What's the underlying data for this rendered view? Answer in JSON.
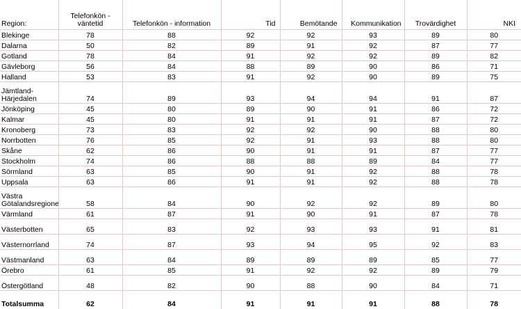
{
  "headers": {
    "region": "Region:",
    "wait": "Telefonkön - väntetid",
    "info": "Telefonkön - information",
    "tid": "Tid",
    "bemotande": "Bemötande",
    "kommunikation": "Kommunikation",
    "trovardighet": "Trovärdighet",
    "nki": "NKI"
  },
  "rows": [
    {
      "region": "Blekinge",
      "wait": "78",
      "info": "88",
      "tid": "92",
      "bem": "92",
      "kom": "93",
      "tro": "89",
      "nki": "80"
    },
    {
      "region": "Dalarna",
      "wait": "50",
      "info": "82",
      "tid": "89",
      "bem": "91",
      "kom": "92",
      "tro": "87",
      "nki": "77"
    },
    {
      "region": "Gotland",
      "wait": "78",
      "info": "84",
      "tid": "91",
      "bem": "92",
      "kom": "92",
      "tro": "89",
      "nki": "82"
    },
    {
      "region": "Gävleborg",
      "wait": "56",
      "info": "84",
      "tid": "88",
      "bem": "89",
      "kom": "90",
      "tro": "86",
      "nki": "71"
    },
    {
      "region": "Halland",
      "wait": "53",
      "info": "83",
      "tid": "91",
      "bem": "92",
      "kom": "90",
      "tro": "89",
      "nki": "75"
    },
    {
      "region": "Jämtland-Härjedalen",
      "wait": "74",
      "info": "89",
      "tid": "93",
      "bem": "94",
      "kom": "94",
      "tro": "91",
      "nki": "87"
    },
    {
      "region": "Jönköping",
      "wait": "45",
      "info": "80",
      "tid": "89",
      "bem": "90",
      "kom": "91",
      "tro": "86",
      "nki": "72"
    },
    {
      "region": "Kalmar",
      "wait": "45",
      "info": "80",
      "tid": "91",
      "bem": "91",
      "kom": "91",
      "tro": "87",
      "nki": "72"
    },
    {
      "region": "Kronoberg",
      "wait": "73",
      "info": "83",
      "tid": "92",
      "bem": "92",
      "kom": "90",
      "tro": "88",
      "nki": "80"
    },
    {
      "region": "Norrbotten",
      "wait": "76",
      "info": "85",
      "tid": "92",
      "bem": "91",
      "kom": "93",
      "tro": "88",
      "nki": "80"
    },
    {
      "region": "Skåne",
      "wait": "62",
      "info": "86",
      "tid": "90",
      "bem": "91",
      "kom": "91",
      "tro": "87",
      "nki": "77"
    },
    {
      "region": "Stockholm",
      "wait": "74",
      "info": "86",
      "tid": "88",
      "bem": "88",
      "kom": "89",
      "tro": "84",
      "nki": "77"
    },
    {
      "region": "Sörmland",
      "wait": "63",
      "info": "85",
      "tid": "90",
      "bem": "91",
      "kom": "92",
      "tro": "88",
      "nki": "78"
    },
    {
      "region": "Uppsala",
      "wait": "63",
      "info": "86",
      "tid": "91",
      "bem": "91",
      "kom": "92",
      "tro": "88",
      "nki": "78"
    },
    {
      "region": "Västra Götalandsregionen",
      "wait": "58",
      "info": "84",
      "tid": "90",
      "bem": "92",
      "kom": "92",
      "tro": "89",
      "nki": "80"
    },
    {
      "region": "Värmland",
      "wait": "61",
      "info": "87",
      "tid": "91",
      "bem": "90",
      "kom": "91",
      "tro": "87",
      "nki": "78"
    },
    {
      "region": "Västerbotten",
      "wait": "65",
      "info": "83",
      "tid": "92",
      "bem": "93",
      "kom": "93",
      "tro": "91",
      "nki": "81"
    },
    {
      "region": "Västernorrland",
      "wait": "74",
      "info": "87",
      "tid": "93",
      "bem": "94",
      "kom": "95",
      "tro": "92",
      "nki": "83"
    },
    {
      "region": "Västmanland",
      "wait": "63",
      "info": "84",
      "tid": "89",
      "bem": "89",
      "kom": "89",
      "tro": "85",
      "nki": "77"
    },
    {
      "region": "Örebro",
      "wait": "61",
      "info": "85",
      "tid": "91",
      "bem": "92",
      "kom": "92",
      "tro": "89",
      "nki": "79"
    },
    {
      "region": "Östergötland",
      "wait": "48",
      "info": "82",
      "tid": "90",
      "bem": "88",
      "kom": "90",
      "tro": "84",
      "nki": "71"
    }
  ],
  "total": {
    "region": "Totalsumma",
    "wait": "62",
    "info": "84",
    "tid": "91",
    "bem": "91",
    "kom": "91",
    "tro": "88",
    "nki": "78"
  }
}
